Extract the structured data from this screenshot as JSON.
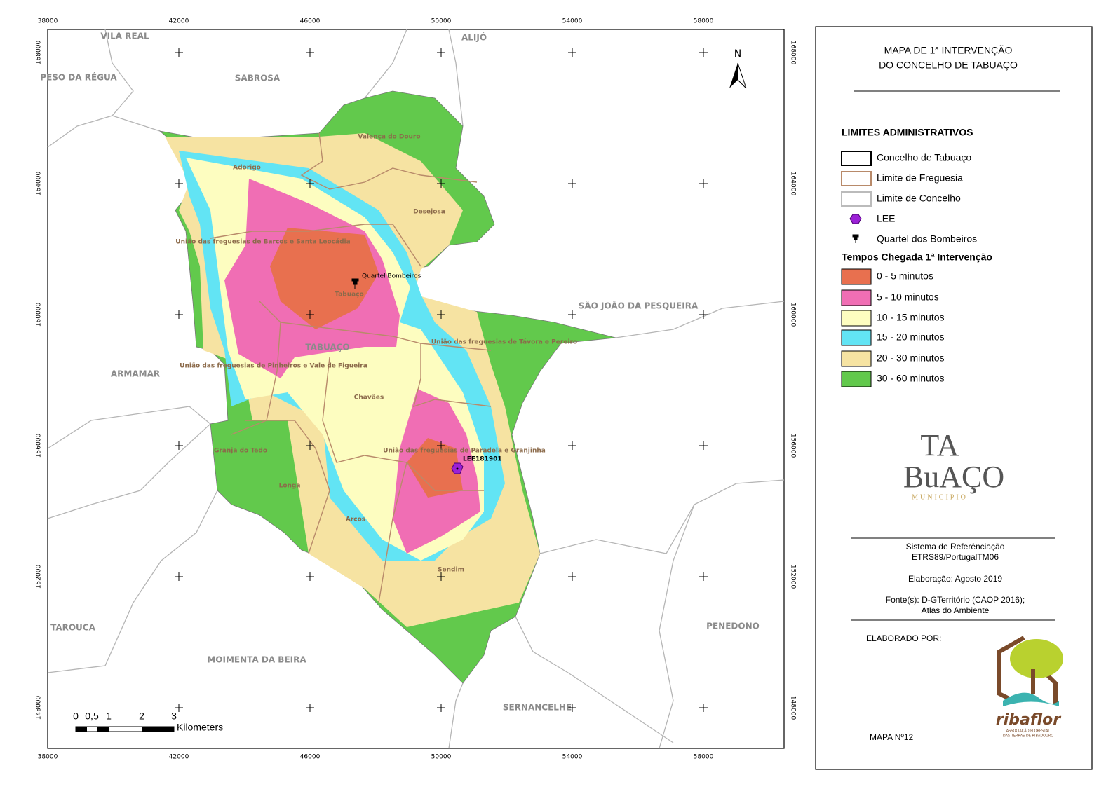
{
  "grid": {
    "xticks": [
      38000,
      42000,
      46000,
      50000,
      54000,
      58000
    ],
    "yticks": [
      168000,
      164000,
      160000,
      156000,
      152000,
      148000
    ]
  },
  "north": "N",
  "scale_bar": {
    "labels": [
      "0",
      "0,5",
      "1",
      "2",
      "3"
    ],
    "unit": "Kilometers"
  },
  "concelho_labels": [
    "VILA REAL",
    "ALIJÓ",
    "PESO DA RÉGUA",
    "SABROSA",
    "SÃO JOÃO DA PESQUEIRA",
    "ARMAMAR",
    "TABUAÇO",
    "TAROUCA",
    "MOIMENTA DA BEIRA",
    "PENEDONO",
    "SERNANCELHE"
  ],
  "freguesia_labels": [
    "Valença do Douro",
    "Adorigo",
    "Desejosa",
    "União das freguesias de Barcos e Santa Leocádia",
    "Tabuaço",
    "União das freguesias de Távora e Pereiro",
    "União das freguesias de Pinheiros e Vale de Figueira",
    "Chavães",
    "União das freguesias de Paradela e Granjinha",
    "Granja do Tedo",
    "Longa",
    "Arcos",
    "Sendim"
  ],
  "point_labels": {
    "bombeiros": "Quartel Bombeiros",
    "lee": "LEE181901"
  },
  "legend": {
    "title": [
      "MAPA DE 1ª INTERVENÇÃO",
      "DO CONCELHO DE TABUAÇO"
    ],
    "heading": "LIMITES ADMINISTRATIVOS",
    "admin_items": [
      "Concelho de Tabuaço",
      "Limite de Freguesia",
      "Limite de Concelho",
      "LEE",
      "Quartel dos Bombeiros"
    ],
    "time_heading": "Tempos Chegada 1ª Intervenção",
    "time_classes": [
      {
        "label": "0 - 5 minutos",
        "color": "#e8704f"
      },
      {
        "label": "5 - 10 minutos",
        "color": "#f06eb4"
      },
      {
        "label": "10 - 15 minutos",
        "color": "#fdfdc0"
      },
      {
        "label": "15 - 20 minutos",
        "color": "#62e4f4"
      },
      {
        "label": "20 - 30 minutos",
        "color": "#f6e3a2"
      },
      {
        "label": "30 - 60 minutos",
        "color": "#62c94c"
      }
    ]
  },
  "info": {
    "reference": [
      "Sistema de Referênciação",
      "ETRS89/PortugalTM06"
    ],
    "date": "Elaboração: Agosto 2019",
    "sources": [
      "Fonte(s): D-GTerritório (CAOP 2016);",
      "Atlas do Ambiente"
    ],
    "made_by": "ELABORADO POR:",
    "map_number": "MAPA Nº12"
  },
  "logos": {
    "tabuaco": [
      "TA",
      "BuAÇO",
      "MUNICIPIO"
    ],
    "ribaflor": [
      "ribaflor",
      "ASSOCIAÇÃO FLORESTAL",
      "DAS TERRAS DE RIBADOURO"
    ]
  }
}
